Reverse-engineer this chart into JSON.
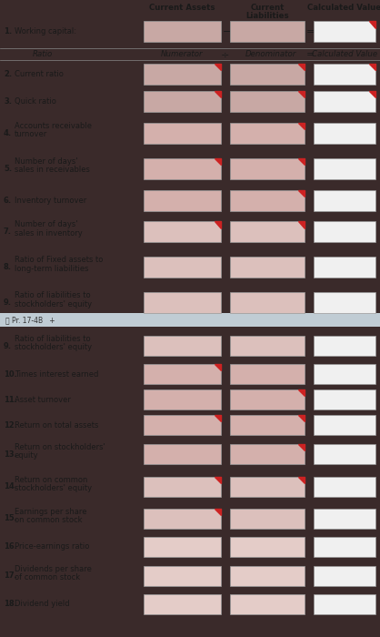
{
  "bg_top": "#ccd8de",
  "bg_bottom": "#ccd8de",
  "dark_bar": "#3a2a2a",
  "box_filled_1": "#c8a8a4",
  "box_filled_2": "#d4b0ac",
  "box_filled_3": "#dcc0bc",
  "box_filled_4": "#e4ccc8",
  "box_white": "#f0f0f0",
  "box_border": "#999999",
  "text_color": "#1a1a1a",
  "red_corner": "#cc2222",
  "tab_bg": "#c0ccd4",
  "font_size": 6.0,
  "font_size_hdr": 6.2,
  "rows_top": [
    {
      "num": "2.",
      "label": "Current ratio",
      "two_line": false,
      "line2": "",
      "cp": [
        true,
        true,
        true
      ],
      "shade": 1
    },
    {
      "num": "3.",
      "label": "Quick ratio",
      "two_line": false,
      "line2": "",
      "cp": [
        true,
        true,
        true
      ],
      "shade": 1
    },
    {
      "num": "4.",
      "label": "Accounts receivable",
      "two_line": true,
      "line2": "turnover",
      "cp": [
        false,
        true,
        false
      ],
      "shade": 2
    },
    {
      "num": "5.",
      "label": "Number of days'",
      "two_line": true,
      "line2": "sales in receivables",
      "cp": [
        true,
        true,
        false
      ],
      "shade": 2
    },
    {
      "num": "6.",
      "label": "Inventory turnover",
      "two_line": false,
      "line2": "",
      "cp": [
        false,
        true,
        false
      ],
      "shade": 2
    },
    {
      "num": "7.",
      "label": "Number of days'",
      "two_line": true,
      "line2": "sales in inventory",
      "cp": [
        true,
        true,
        false
      ],
      "shade": 3
    },
    {
      "num": "8.",
      "label": "Ratio of Fixed assets to",
      "two_line": true,
      "line2": "long-term liabilities",
      "cp": [
        false,
        false,
        false
      ],
      "shade": 3
    },
    {
      "num": "9.",
      "label": "Ratio of liabilities to",
      "two_line": true,
      "line2": "stockholders' equity",
      "cp": [
        false,
        false,
        false
      ],
      "shade": 3
    }
  ],
  "rows_bottom": [
    {
      "num": "9.",
      "label": "Ratio of liabilities to",
      "two_line": true,
      "line2": "stockholders' equity",
      "cp": [
        false,
        false,
        false
      ],
      "shade": 3
    },
    {
      "num": "10.",
      "label": "Times interest earned",
      "two_line": false,
      "line2": "",
      "cp": [
        true,
        false,
        false
      ],
      "shade": 2
    },
    {
      "num": "11.",
      "label": "Asset turnover",
      "two_line": false,
      "line2": "",
      "cp": [
        false,
        true,
        false
      ],
      "shade": 2
    },
    {
      "num": "12.",
      "label": "Return on total assets",
      "two_line": false,
      "line2": "",
      "cp": [
        true,
        true,
        false
      ],
      "shade": 2
    },
    {
      "num": "13.",
      "label": "Return on stockholders'",
      "two_line": true,
      "line2": "equity",
      "cp": [
        false,
        true,
        false
      ],
      "shade": 2
    },
    {
      "num": "14.",
      "label": "Return on common",
      "two_line": true,
      "line2": "stockholders' equity",
      "cp": [
        true,
        true,
        false
      ],
      "shade": 3
    },
    {
      "num": "15.",
      "label": "Earnings per share",
      "two_line": true,
      "line2": "on common stock",
      "cp": [
        true,
        false,
        false
      ],
      "shade": 3
    },
    {
      "num": "16.",
      "label": "Price-earnings ratio",
      "two_line": false,
      "line2": "",
      "cp": [
        false,
        false,
        false
      ],
      "shade": 4
    },
    {
      "num": "17.",
      "label": "Dividends per share",
      "two_line": true,
      "line2": "of common stock",
      "cp": [
        false,
        false,
        false
      ],
      "shade": 4
    },
    {
      "num": "18.",
      "label": "Dividend yield",
      "two_line": false,
      "line2": "",
      "cp": [
        false,
        false,
        false
      ],
      "shade": 4
    }
  ]
}
